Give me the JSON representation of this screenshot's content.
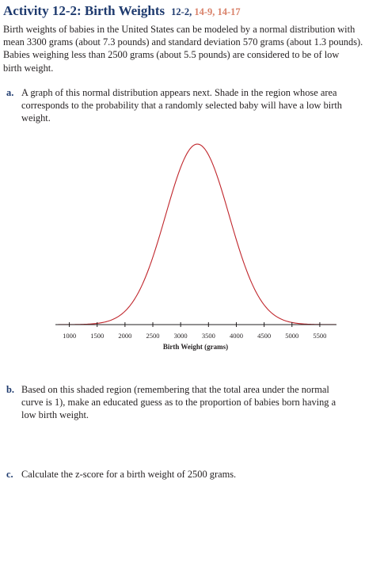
{
  "header": {
    "title": "Activity 12-2: Birth Weights",
    "section_ref": "12-2,",
    "exercise_refs": "14-9, 14-17"
  },
  "intro": {
    "lines": [
      "Birth weights of babies in the United States can be modeled by a normal distribution with",
      "mean 3300 grams (about 7.3 pounds) and standard deviation 570 grams (about 1.3 pounds).",
      "Babies weighing less than 2500 grams (about 5.5 pounds) are considered to be of low",
      "birth weight."
    ]
  },
  "questions": [
    {
      "label": "a.",
      "lines": [
        "A graph of this normal distribution appears next. Shade in the region whose area",
        "corresponds to the probability that a randomly selected baby will have a low birth",
        "weight."
      ]
    },
    {
      "label": "b.",
      "lines": [
        "Based on this shaded region (remembering that the total area under the normal",
        "curve is 1), make an educated guess as to the proportion of babies born having a",
        "low birth weight."
      ]
    },
    {
      "label": "c.",
      "lines": [
        "Calculate the z-score for a birth weight of 2500 grams."
      ]
    }
  ],
  "chart_data": {
    "type": "line",
    "distribution": "normal",
    "mean": 3300,
    "sd": 570,
    "xlabel": "Birth Weight (grams)",
    "ylabel": "",
    "xlim": [
      750,
      5800
    ],
    "x_ticks": [
      1000,
      1500,
      2000,
      2500,
      3000,
      3500,
      4000,
      4500,
      5000,
      5500
    ],
    "grid": false,
    "curve_color": "#c0262c",
    "axis_color": "#231f20"
  }
}
